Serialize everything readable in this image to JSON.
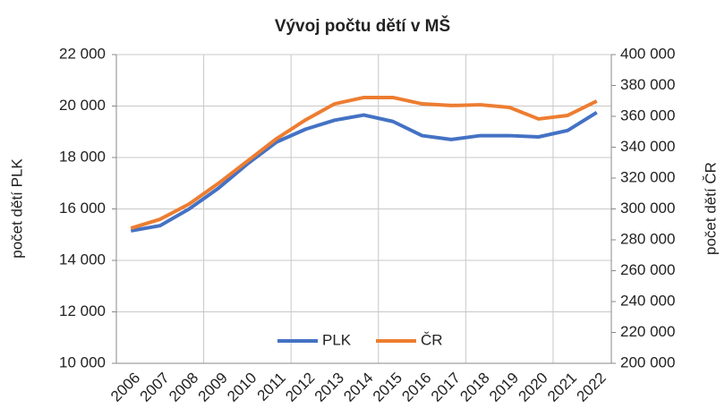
{
  "chart_data": {
    "type": "line",
    "title": "Vývoj počtu dětí v MŠ",
    "y_label": "počet dětí PLK",
    "y2_label": "počet dětí ČR",
    "categories": [
      "2006",
      "2007",
      "2008",
      "2009",
      "2010",
      "2011",
      "2012",
      "2013",
      "2014",
      "2015",
      "2016",
      "2017",
      "2018",
      "2019",
      "2020",
      "2021",
      "2022"
    ],
    "series": [
      {
        "name": "PLK",
        "color": "#4472c4",
        "values": [
          15150,
          15350,
          16000,
          16800,
          17750,
          18600,
          19100,
          19450,
          19650,
          19400,
          18850,
          18700,
          18850,
          18850,
          18800,
          19050,
          19750
        ]
      },
      {
        "name": "ČR",
        "color": "#ed7d31",
        "axis": "y2",
        "values": [
          287500,
          293300,
          303200,
          316500,
          331000,
          345500,
          357700,
          368100,
          372200,
          372200,
          368100,
          367000,
          367500,
          365800,
          358300,
          360600,
          369900
        ]
      }
    ],
    "ylim": [
      10000,
      22000
    ],
    "yticks": [
      {
        "value": 10000,
        "label": "10 000"
      },
      {
        "value": 12000,
        "label": "12 000"
      },
      {
        "value": 14000,
        "label": "14 000"
      },
      {
        "value": 16000,
        "label": "16 000"
      },
      {
        "value": 18000,
        "label": "18 000"
      },
      {
        "value": 20000,
        "label": "20 000"
      },
      {
        "value": 22000,
        "label": "22 000"
      }
    ],
    "y2lim": [
      200000,
      400000
    ],
    "y2ticks": [
      {
        "value": 200000,
        "label": "200 000"
      },
      {
        "value": 220000,
        "label": "220 000"
      },
      {
        "value": 240000,
        "label": "240 000"
      },
      {
        "value": 260000,
        "label": "260 000"
      },
      {
        "value": 280000,
        "label": "280 000"
      },
      {
        "value": 300000,
        "label": "300 000"
      },
      {
        "value": 320000,
        "label": "320 000"
      },
      {
        "value": 340000,
        "label": "340 000"
      },
      {
        "value": 360000,
        "label": "360 000"
      },
      {
        "value": 380000,
        "label": "380 000"
      },
      {
        "value": 400000,
        "label": "400 000"
      }
    ],
    "grid": true,
    "legend": "bottom"
  }
}
